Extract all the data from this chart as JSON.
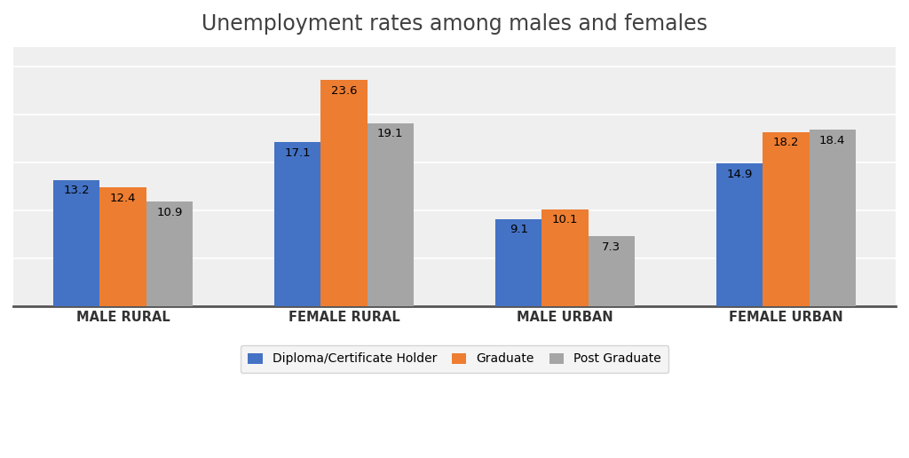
{
  "title": "Unemployment rates among males and females",
  "categories": [
    "MALE RURAL",
    "FEMALE RURAL",
    "MALE URBAN",
    "FEMALE URBAN"
  ],
  "series": [
    {
      "name": "Diploma/Certificate Holder",
      "values": [
        13.2,
        17.1,
        9.1,
        14.9
      ],
      "color": "#4472C4"
    },
    {
      "name": "Graduate",
      "values": [
        12.4,
        23.6,
        10.1,
        18.2
      ],
      "color": "#ED7D31"
    },
    {
      "name": "Post Graduate",
      "values": [
        10.9,
        19.1,
        7.3,
        18.4
      ],
      "color": "#A5A5A5"
    }
  ],
  "ylim": [
    0,
    27
  ],
  "title_fontsize": 17,
  "tick_fontsize": 10.5,
  "legend_fontsize": 10,
  "bar_width": 0.21,
  "background_color": "#FFFFFF",
  "plot_bg_color": "#EFEFEF",
  "grid_color": "#FFFFFF",
  "title_color": "#404040",
  "value_label_fontsize": 9.5,
  "grid_yticks": [
    5,
    10,
    15,
    20,
    25
  ]
}
